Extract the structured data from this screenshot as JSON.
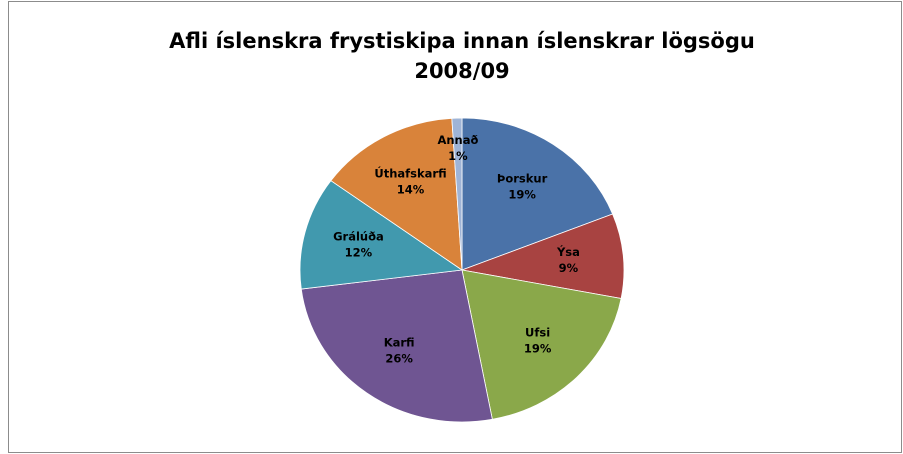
{
  "chart_data": {
    "type": "pie",
    "title": [
      "Afli íslenskra frystiskipa innan íslenskrar lögsögu",
      "2008/09"
    ],
    "categories": [
      "Þorskur",
      "Ýsa",
      "Ufsi",
      "Karfi",
      "Grálúða",
      "Úthafskarfi",
      "Annað"
    ],
    "values": [
      19,
      9,
      19,
      26,
      12,
      14,
      1
    ],
    "value_labels": [
      "19%",
      "9%",
      "19%",
      "26%",
      "12%",
      "14%",
      "1%"
    ],
    "colors": [
      "#4a72a8",
      "#a84341",
      "#8aa84a",
      "#6f5592",
      "#4199ae",
      "#d9833a",
      "#9fb4d6"
    ]
  }
}
